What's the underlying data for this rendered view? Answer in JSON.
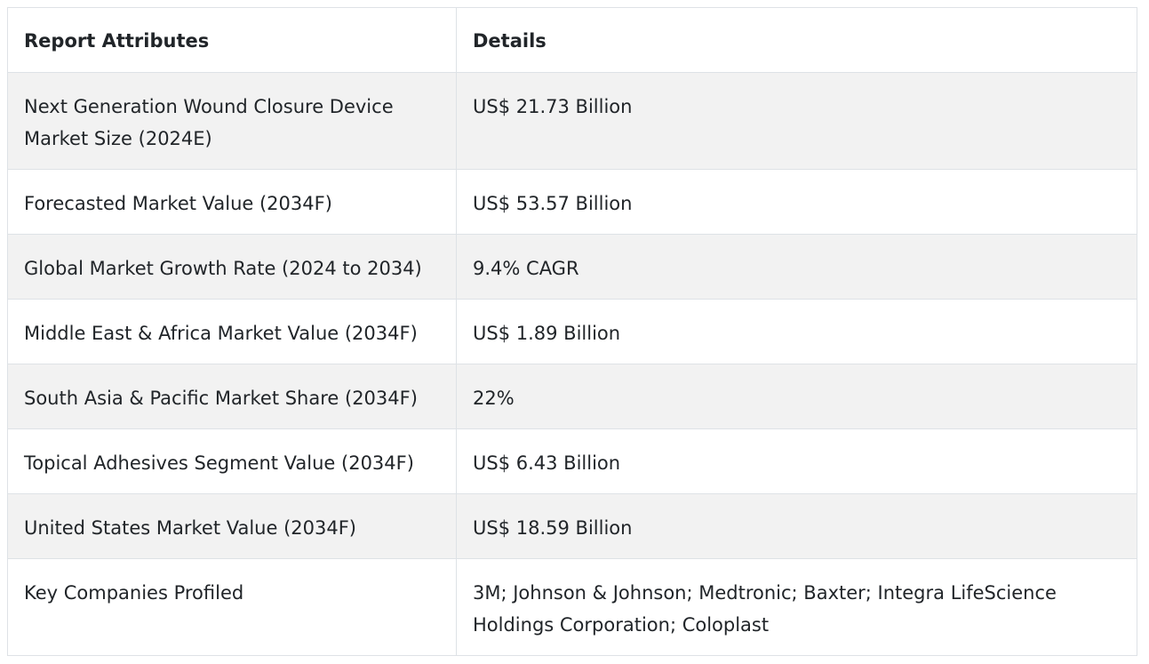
{
  "table": {
    "headers": [
      "Report Attributes",
      "Details"
    ],
    "rows": [
      [
        "Next Generation Wound Closure Device Market Size (2024E)",
        "US$ 21.73 Billion"
      ],
      [
        "Forecasted Market Value (2034F)",
        "US$ 53.57 Billion"
      ],
      [
        "Global Market Growth Rate (2024 to 2034)",
        "9.4% CAGR"
      ],
      [
        "Middle East & Africa Market Value (2034F)",
        "US$ 1.89 Billion"
      ],
      [
        "South Asia & Pacific Market Share (2034F)",
        "22%"
      ],
      [
        "Topical Adhesives Segment Value (2034F)",
        "US$ 6.43 Billion"
      ],
      [
        "United States Market Value (2034F)",
        "US$ 18.59 Billion"
      ],
      [
        "Key Companies Profiled",
        "3M; Johnson & Johnson; Medtronic; Baxter; Integra LifeScience Holdings Corporation; Coloplast"
      ]
    ]
  }
}
